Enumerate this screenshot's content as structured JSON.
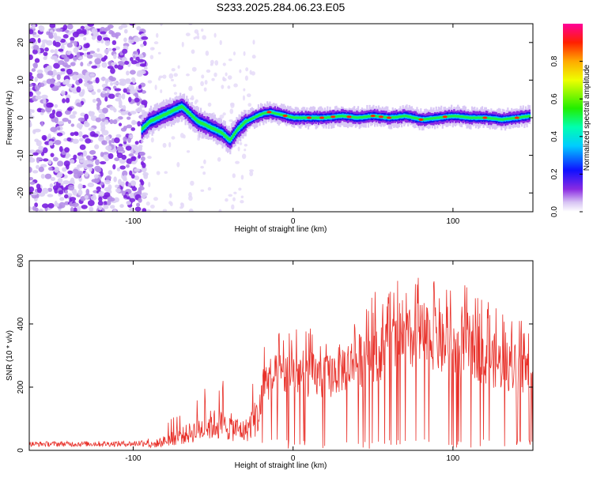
{
  "title": "S233.2025.284.06.23.E05",
  "chart_data": [
    {
      "type": "heatmap",
      "xlabel": "Height of straight line (km)",
      "ylabel": "Frequency (Hz)",
      "xlim": [
        -165,
        150
      ],
      "ylim": [
        -25,
        25
      ],
      "xticks": [
        -100,
        0,
        100
      ],
      "yticks": [
        -20,
        -10,
        0,
        10,
        20
      ],
      "ridge": {
        "x": [
          -95,
          -90,
          -85,
          -80,
          -75,
          -70,
          -65,
          -60,
          -55,
          -50,
          -45,
          -40,
          -35,
          -30,
          -25,
          -20,
          -15,
          -10,
          -5,
          0,
          10,
          20,
          30,
          40,
          50,
          60,
          70,
          80,
          90,
          100,
          110,
          120,
          130,
          140,
          148
        ],
        "y": [
          -3,
          -1,
          0,
          1,
          2,
          3,
          1,
          -1,
          -2,
          -3,
          -4,
          -6,
          -3,
          -1,
          0,
          1,
          1.5,
          1,
          0.5,
          0,
          0,
          0,
          0.5,
          0,
          0.5,
          0,
          0.5,
          -0.5,
          0,
          0.5,
          0,
          0,
          -0.5,
          0,
          0.5
        ]
      },
      "colorbar": {
        "label": "Normalized spectral amplitude",
        "range": [
          0,
          1
        ],
        "ticks": [
          0.0,
          0.2,
          0.4,
          0.6,
          0.8
        ]
      }
    },
    {
      "type": "line",
      "xlabel": "Height of straight line (km)",
      "ylabel": "SNR (10 * v/v)",
      "xlim": [
        -165,
        150
      ],
      "ylim": [
        0,
        600
      ],
      "xticks": [
        -100,
        0,
        100
      ],
      "yticks": [
        0,
        200,
        400,
        600
      ],
      "series": [
        {
          "color": "#e8312a",
          "envelope": {
            "x": [
              -165,
              -100,
              -90,
              -80,
              -70,
              -60,
              -50,
              -40,
              -30,
              -20,
              -10,
              0,
              10,
              20,
              30,
              40,
              50,
              60,
              70,
              80,
              90,
              100,
              110,
              120,
              130,
              140,
              150
            ],
            "y": [
              28,
              30,
              40,
              80,
              120,
              170,
              220,
              200,
              160,
              330,
              360,
              380,
              370,
              350,
              400,
              430,
              480,
              500,
              520,
              560,
              530,
              480,
              520,
              460,
              420,
              400,
              380
            ]
          }
        }
      ]
    }
  ]
}
